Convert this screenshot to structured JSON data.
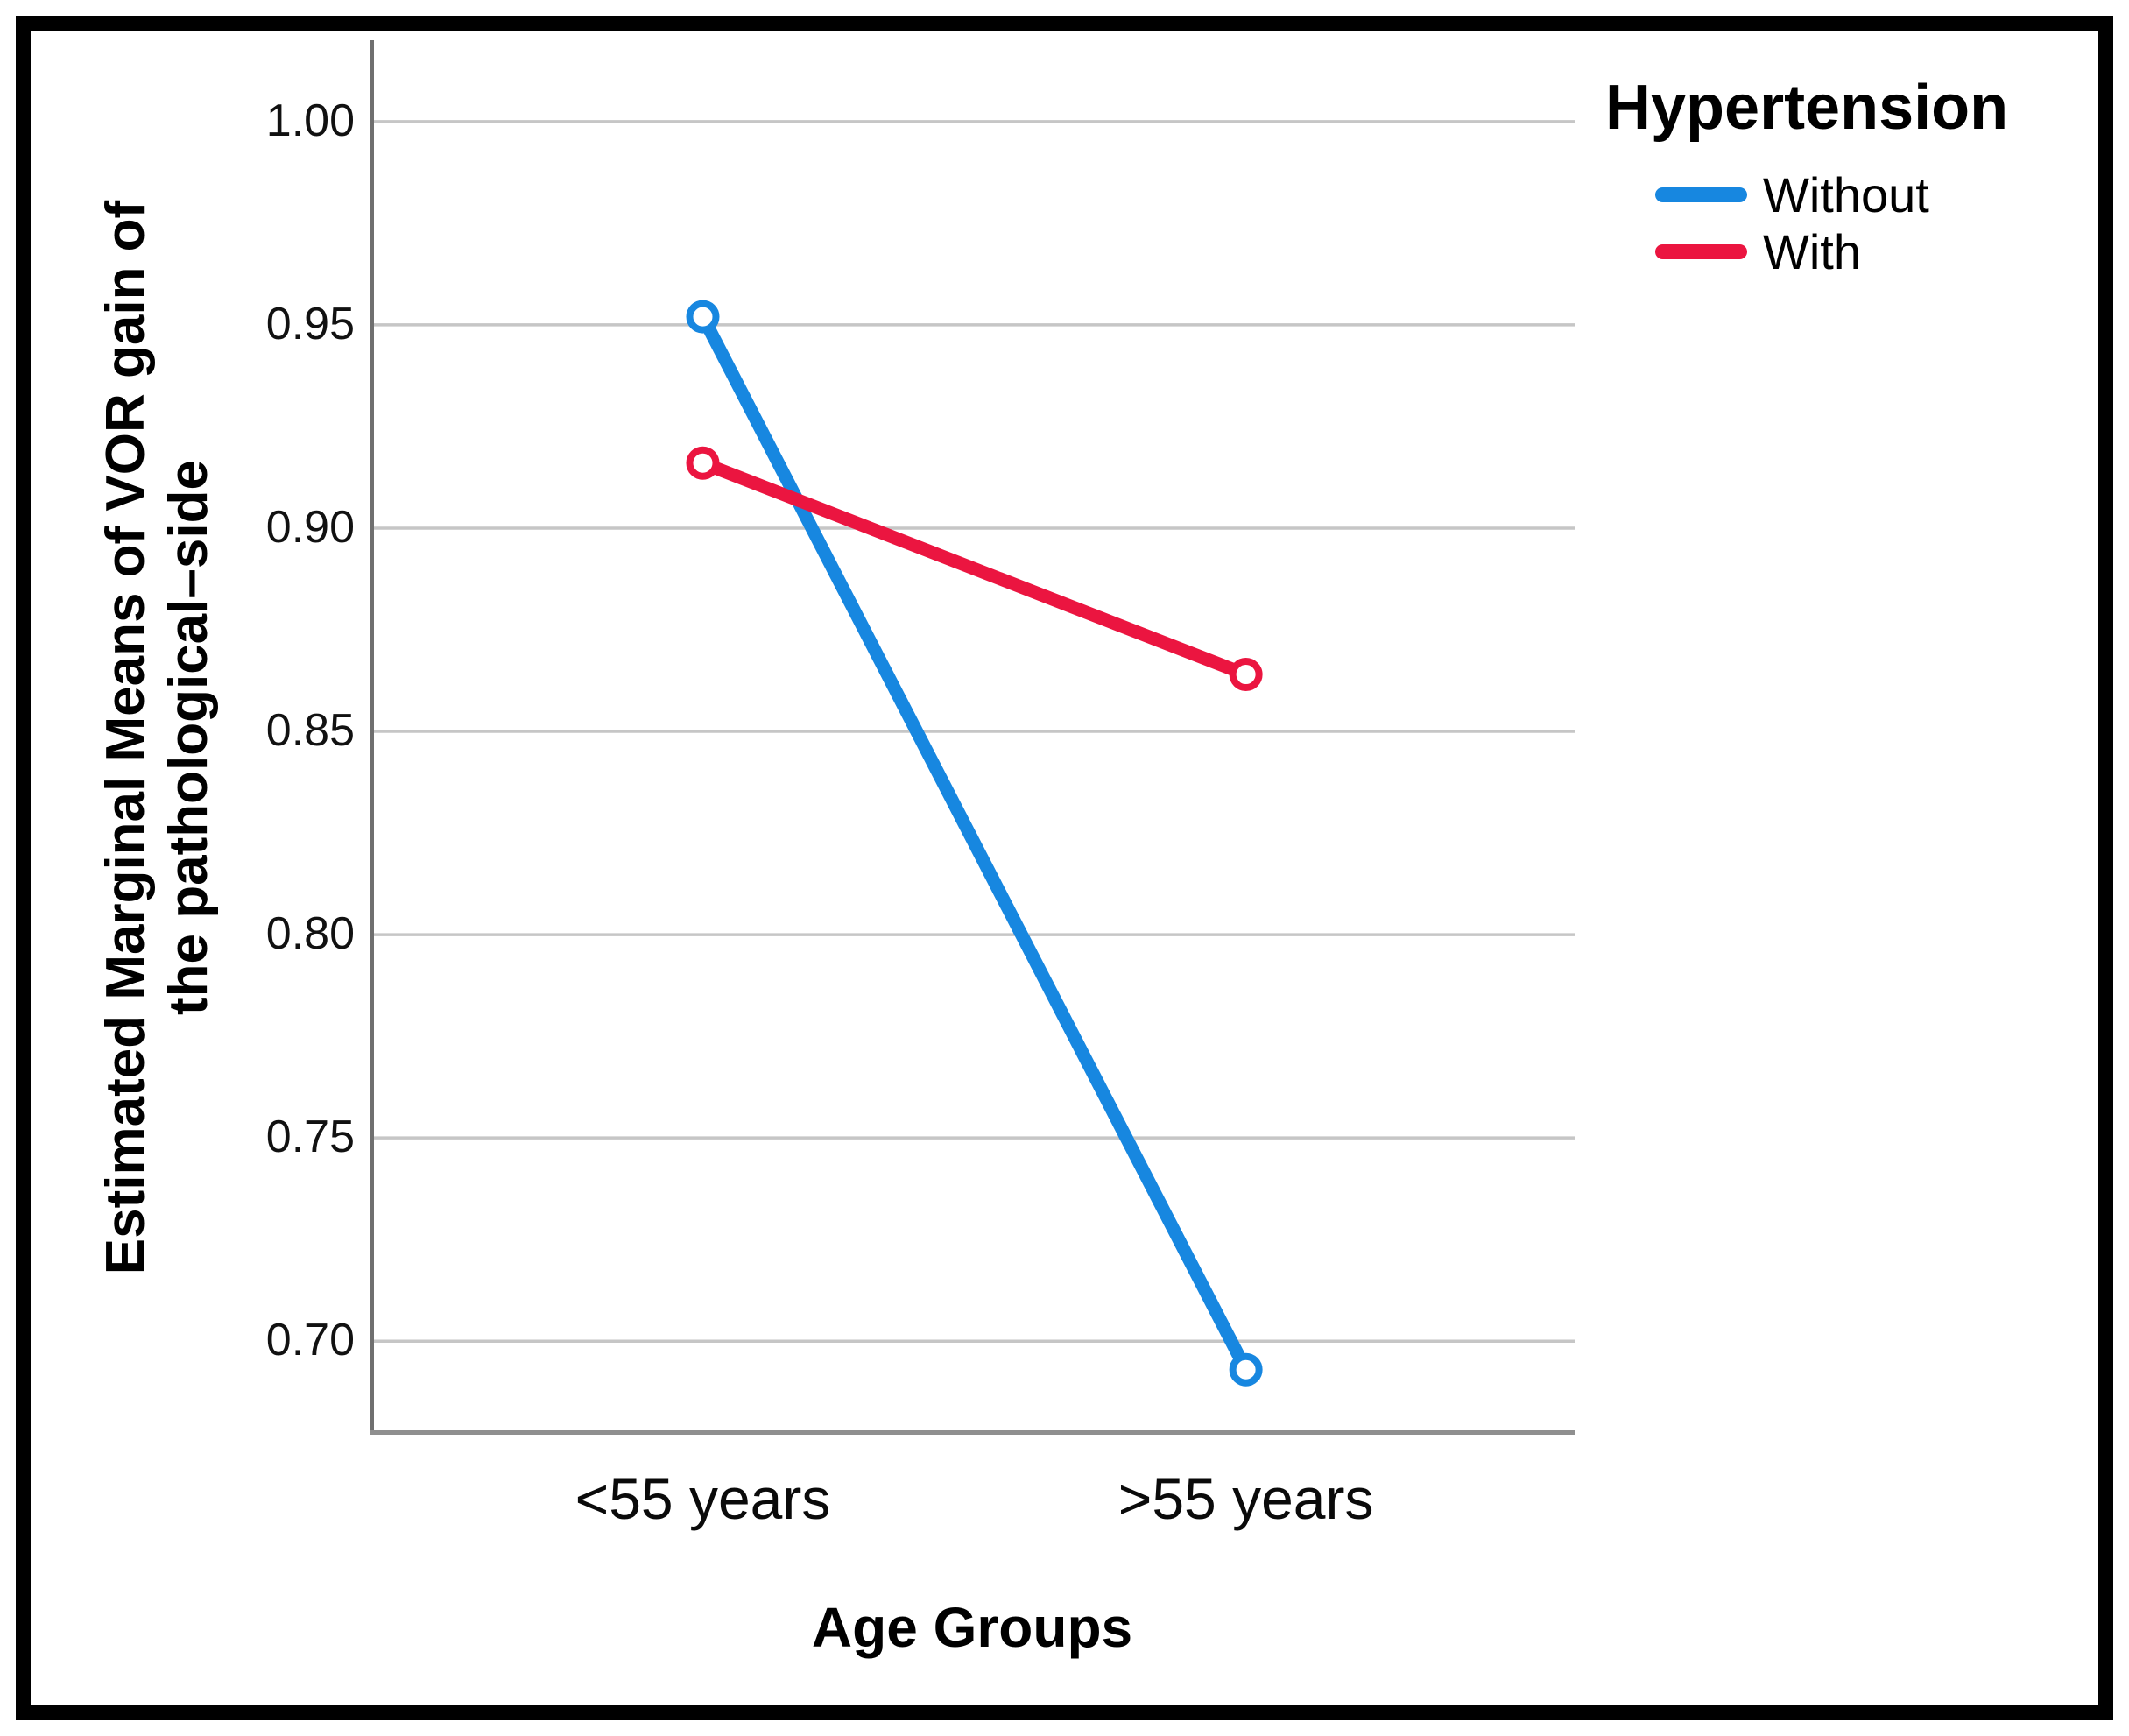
{
  "figure": {
    "y_axis": {
      "title_line1": "Estimated Marginal Means of VOR gain of",
      "title_line2": "the pathological–side",
      "tick_labels": [
        "1.00",
        "0.95",
        "0.90",
        "0.85",
        "0.80",
        "0.75",
        "0.70"
      ]
    },
    "x_axis": {
      "title": "Age Groups",
      "categories": [
        "<55 years",
        ">55 years"
      ]
    },
    "legend": {
      "title": "Hypertension",
      "items": [
        {
          "label": "Without",
          "color": "#1787E0"
        },
        {
          "label": "With",
          "color": "#EB1540"
        }
      ]
    }
  },
  "chart_data": {
    "type": "line",
    "title": "",
    "categories": [
      "<55 years",
      ">55 years"
    ],
    "series": [
      {
        "name": "Without",
        "color": "#1787E0",
        "values": [
          0.952,
          0.693
        ]
      },
      {
        "name": "With",
        "color": "#EB1540",
        "values": [
          0.916,
          0.864
        ]
      }
    ],
    "xlabel": "Age Groups",
    "ylabel": "Estimated Marginal Means of VOR gain of the pathological–side",
    "ylim": [
      0.677,
      1.02
    ],
    "yticks": [
      0.7,
      0.75,
      0.8,
      0.85,
      0.9,
      0.95,
      1.0
    ],
    "ytick_labels": [
      "0.70",
      "0.75",
      "0.80",
      "0.85",
      "0.90",
      "0.95",
      "1.00"
    ],
    "grid": true,
    "legend_title": "Hypertension",
    "legend_position": "top-right",
    "marker": "open-circle",
    "colors": {
      "gridline": "#C6C6C6",
      "y_axis_line": "#6F6F6F",
      "x_axis_line": "#8F8F8F",
      "frame": "#000000"
    }
  }
}
